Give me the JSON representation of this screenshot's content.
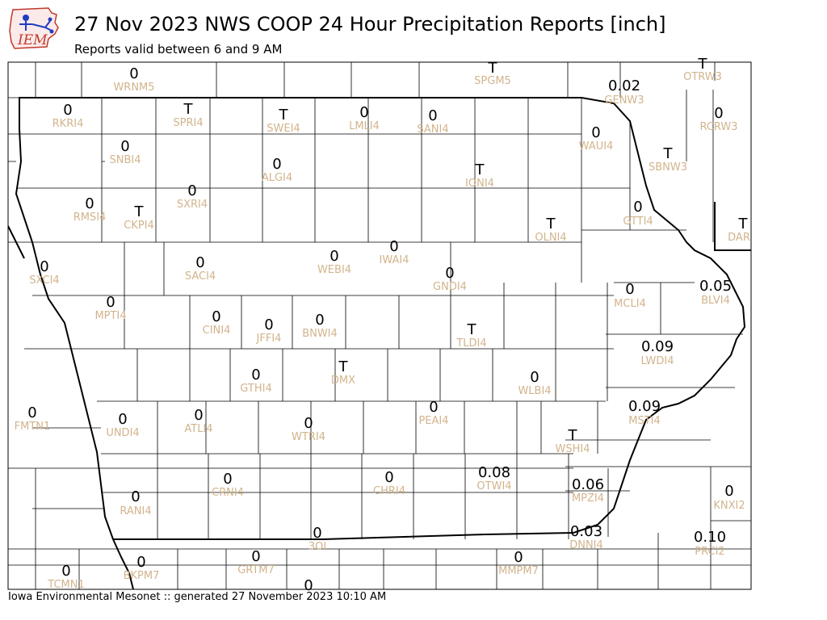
{
  "header": {
    "logo_text": "IEM",
    "title": "27 Nov 2023 NWS COOP 24 Hour Precipitation Reports [inch]",
    "subtitle": "Reports valid between 6 and 9 AM"
  },
  "footer": {
    "credit": "Iowa Environmental Mesonet :: generated 27 November 2023 10:10 AM"
  },
  "colors": {
    "value_text": "#000000",
    "station_text": "#d2b48c",
    "boundary_state": "#000000",
    "boundary_county": "#000000",
    "logo_red": "#c0392b",
    "logo_blue": "#1f3fbf"
  },
  "stations": [
    {
      "id": "WRNM5",
      "value": "0"
    },
    {
      "id": "SPGM5",
      "value": "T"
    },
    {
      "id": "OTRW3",
      "value": "T"
    },
    {
      "id": "GENW3",
      "value": "0.02"
    },
    {
      "id": "RKRI4",
      "value": "0"
    },
    {
      "id": "SPRI4",
      "value": "T"
    },
    {
      "id": "SWEI4",
      "value": "T"
    },
    {
      "id": "LMLI4",
      "value": "0"
    },
    {
      "id": "SANI4",
      "value": "0"
    },
    {
      "id": "RCRW3",
      "value": "0"
    },
    {
      "id": "WAUI4",
      "value": "0"
    },
    {
      "id": "SNBI4",
      "value": "0"
    },
    {
      "id": "ALGI4",
      "value": "0"
    },
    {
      "id": "IONI4",
      "value": "T"
    },
    {
      "id": "SBNW3",
      "value": "T"
    },
    {
      "id": "RMSI4",
      "value": "0"
    },
    {
      "id": "CKPI4",
      "value": "T"
    },
    {
      "id": "SXRI4",
      "value": "0"
    },
    {
      "id": "GTTI4",
      "value": "0"
    },
    {
      "id": "OLNI4",
      "value": "T"
    },
    {
      "id": "DAR",
      "value": "T"
    },
    {
      "id": "SXCI4",
      "value": "0"
    },
    {
      "id": "SACI4",
      "value": "0"
    },
    {
      "id": "WEBI4",
      "value": "0"
    },
    {
      "id": "IWAI4",
      "value": "0"
    },
    {
      "id": "GNDI4",
      "value": "0"
    },
    {
      "id": "MCLI4",
      "value": "0"
    },
    {
      "id": "BLVI4",
      "value": "0.05"
    },
    {
      "id": "MPTI4",
      "value": "0"
    },
    {
      "id": "CINI4",
      "value": "0"
    },
    {
      "id": "JFFI4",
      "value": "0"
    },
    {
      "id": "BNWI4",
      "value": "0"
    },
    {
      "id": "TLDI4",
      "value": "T"
    },
    {
      "id": "LWDI4",
      "value": "0.09"
    },
    {
      "id": "GTHI4",
      "value": "0"
    },
    {
      "id": "DMX",
      "value": "T"
    },
    {
      "id": "WLBI4",
      "value": "0"
    },
    {
      "id": "FMTN1",
      "value": "0"
    },
    {
      "id": "UNDI4",
      "value": "0"
    },
    {
      "id": "ATLI4",
      "value": "0"
    },
    {
      "id": "WTRI4",
      "value": "0"
    },
    {
      "id": "PEAI4",
      "value": "0"
    },
    {
      "id": "MSTI4",
      "value": "0.09"
    },
    {
      "id": "WSHI4",
      "value": "T"
    },
    {
      "id": "CRNI4",
      "value": "0"
    },
    {
      "id": "CHRI4",
      "value": "0"
    },
    {
      "id": "OTWI4",
      "value": "0.08"
    },
    {
      "id": "MPZI4",
      "value": "0.06"
    },
    {
      "id": "KNXI2",
      "value": "0"
    },
    {
      "id": "RANI4",
      "value": "0"
    },
    {
      "id": "3OI",
      "value": "0"
    },
    {
      "id": "DNNI4",
      "value": "0.03"
    },
    {
      "id": "PRCI2",
      "value": "0.10"
    },
    {
      "id": "TCMN1",
      "value": "0"
    },
    {
      "id": "BKPM7",
      "value": "0"
    },
    {
      "id": "GRTM7",
      "value": "0"
    },
    {
      "id": "MMPM7",
      "value": "0"
    },
    {
      "id": "extra-bottom",
      "value": "0"
    }
  ]
}
